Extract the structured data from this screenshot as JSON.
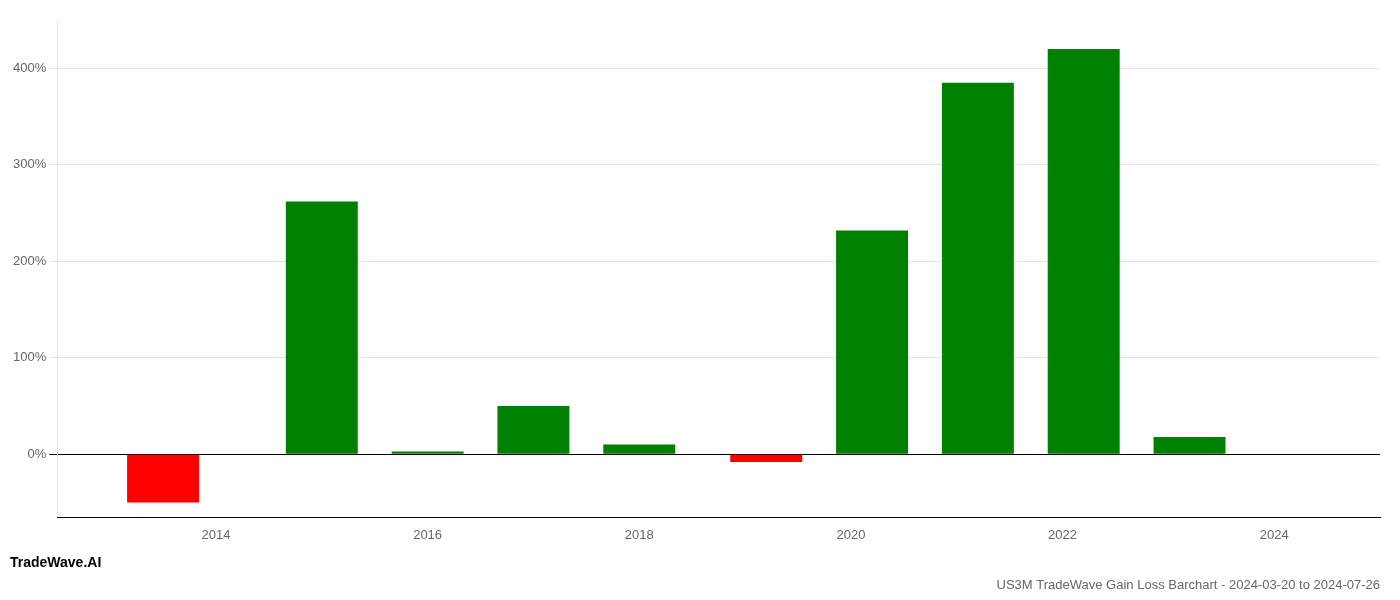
{
  "chart_data": {
    "type": "bar",
    "title": "US3M TradeWave Gain Loss Barchart - 2024-03-20 to 2024-07-26",
    "annotations": [
      "TradeWave.AI"
    ],
    "x": [
      2013.5,
      2015.0,
      2016.0,
      2017.0,
      2018.0,
      2019.2,
      2020.2,
      2021.2,
      2022.2,
      2023.2
    ],
    "values": [
      -50,
      262,
      3,
      50,
      10,
      -8,
      232,
      385,
      420,
      18
    ],
    "colors": [
      "#ff0000",
      "#008000",
      "#008000",
      "#008000",
      "#008000",
      "#ff0000",
      "#008000",
      "#008000",
      "#008000",
      "#008000"
    ],
    "xlim": [
      2012.5,
      2025.0
    ],
    "xticks": [
      2014,
      2016,
      2018,
      2020,
      2022,
      2024
    ],
    "ylim": [
      -65,
      450
    ],
    "yticks": [
      {
        "value": 0,
        "label": "0%"
      },
      {
        "value": 100,
        "label": "100%"
      },
      {
        "value": 200,
        "label": "200%"
      },
      {
        "value": 300,
        "label": "300%"
      },
      {
        "value": 400,
        "label": "400%"
      }
    ],
    "grid": true
  }
}
